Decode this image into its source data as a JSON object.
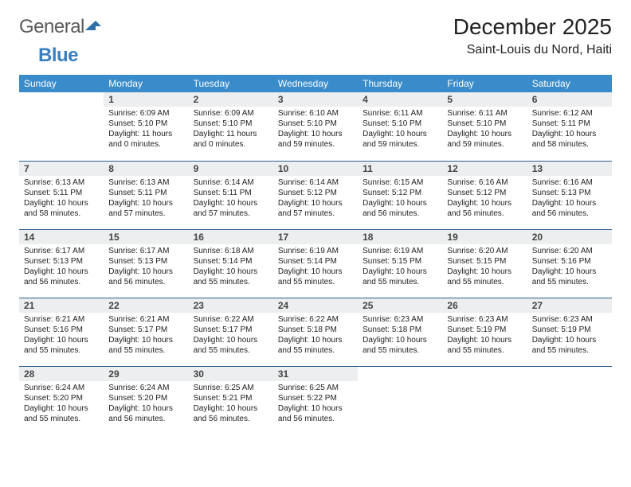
{
  "logo": {
    "word1": "General",
    "word2": "Blue"
  },
  "title": "December 2025",
  "location": "Saint-Louis du Nord, Haiti",
  "colors": {
    "header_bg": "#3a8bc9",
    "header_text": "#ffffff",
    "daynum_bg": "#eceeef",
    "row_divider": "#2f5f8f",
    "logo_gray": "#5a5a5a",
    "logo_blue": "#3a7fbf",
    "body_text": "#222222",
    "background": "#ffffff"
  },
  "typography": {
    "title_fontsize": 28,
    "location_fontsize": 16,
    "header_fontsize": 12,
    "daynum_fontsize": 12,
    "cell_fontsize": 10
  },
  "calendar": {
    "type": "table",
    "columns": [
      "Sunday",
      "Monday",
      "Tuesday",
      "Wednesday",
      "Thursday",
      "Friday",
      "Saturday"
    ],
    "weeks": [
      [
        null,
        {
          "n": "1",
          "sr": "6:09 AM",
          "ss": "5:10 PM",
          "dl": "11 hours and 0 minutes."
        },
        {
          "n": "2",
          "sr": "6:09 AM",
          "ss": "5:10 PM",
          "dl": "11 hours and 0 minutes."
        },
        {
          "n": "3",
          "sr": "6:10 AM",
          "ss": "5:10 PM",
          "dl": "10 hours and 59 minutes."
        },
        {
          "n": "4",
          "sr": "6:11 AM",
          "ss": "5:10 PM",
          "dl": "10 hours and 59 minutes."
        },
        {
          "n": "5",
          "sr": "6:11 AM",
          "ss": "5:10 PM",
          "dl": "10 hours and 59 minutes."
        },
        {
          "n": "6",
          "sr": "6:12 AM",
          "ss": "5:11 PM",
          "dl": "10 hours and 58 minutes."
        }
      ],
      [
        {
          "n": "7",
          "sr": "6:13 AM",
          "ss": "5:11 PM",
          "dl": "10 hours and 58 minutes."
        },
        {
          "n": "8",
          "sr": "6:13 AM",
          "ss": "5:11 PM",
          "dl": "10 hours and 57 minutes."
        },
        {
          "n": "9",
          "sr": "6:14 AM",
          "ss": "5:11 PM",
          "dl": "10 hours and 57 minutes."
        },
        {
          "n": "10",
          "sr": "6:14 AM",
          "ss": "5:12 PM",
          "dl": "10 hours and 57 minutes."
        },
        {
          "n": "11",
          "sr": "6:15 AM",
          "ss": "5:12 PM",
          "dl": "10 hours and 56 minutes."
        },
        {
          "n": "12",
          "sr": "6:16 AM",
          "ss": "5:12 PM",
          "dl": "10 hours and 56 minutes."
        },
        {
          "n": "13",
          "sr": "6:16 AM",
          "ss": "5:13 PM",
          "dl": "10 hours and 56 minutes."
        }
      ],
      [
        {
          "n": "14",
          "sr": "6:17 AM",
          "ss": "5:13 PM",
          "dl": "10 hours and 56 minutes."
        },
        {
          "n": "15",
          "sr": "6:17 AM",
          "ss": "5:13 PM",
          "dl": "10 hours and 56 minutes."
        },
        {
          "n": "16",
          "sr": "6:18 AM",
          "ss": "5:14 PM",
          "dl": "10 hours and 55 minutes."
        },
        {
          "n": "17",
          "sr": "6:19 AM",
          "ss": "5:14 PM",
          "dl": "10 hours and 55 minutes."
        },
        {
          "n": "18",
          "sr": "6:19 AM",
          "ss": "5:15 PM",
          "dl": "10 hours and 55 minutes."
        },
        {
          "n": "19",
          "sr": "6:20 AM",
          "ss": "5:15 PM",
          "dl": "10 hours and 55 minutes."
        },
        {
          "n": "20",
          "sr": "6:20 AM",
          "ss": "5:16 PM",
          "dl": "10 hours and 55 minutes."
        }
      ],
      [
        {
          "n": "21",
          "sr": "6:21 AM",
          "ss": "5:16 PM",
          "dl": "10 hours and 55 minutes."
        },
        {
          "n": "22",
          "sr": "6:21 AM",
          "ss": "5:17 PM",
          "dl": "10 hours and 55 minutes."
        },
        {
          "n": "23",
          "sr": "6:22 AM",
          "ss": "5:17 PM",
          "dl": "10 hours and 55 minutes."
        },
        {
          "n": "24",
          "sr": "6:22 AM",
          "ss": "5:18 PM",
          "dl": "10 hours and 55 minutes."
        },
        {
          "n": "25",
          "sr": "6:23 AM",
          "ss": "5:18 PM",
          "dl": "10 hours and 55 minutes."
        },
        {
          "n": "26",
          "sr": "6:23 AM",
          "ss": "5:19 PM",
          "dl": "10 hours and 55 minutes."
        },
        {
          "n": "27",
          "sr": "6:23 AM",
          "ss": "5:19 PM",
          "dl": "10 hours and 55 minutes."
        }
      ],
      [
        {
          "n": "28",
          "sr": "6:24 AM",
          "ss": "5:20 PM",
          "dl": "10 hours and 55 minutes."
        },
        {
          "n": "29",
          "sr": "6:24 AM",
          "ss": "5:20 PM",
          "dl": "10 hours and 56 minutes."
        },
        {
          "n": "30",
          "sr": "6:25 AM",
          "ss": "5:21 PM",
          "dl": "10 hours and 56 minutes."
        },
        {
          "n": "31",
          "sr": "6:25 AM",
          "ss": "5:22 PM",
          "dl": "10 hours and 56 minutes."
        },
        null,
        null,
        null
      ]
    ],
    "labels": {
      "sunrise": "Sunrise:",
      "sunset": "Sunset:",
      "daylight": "Daylight:"
    }
  }
}
